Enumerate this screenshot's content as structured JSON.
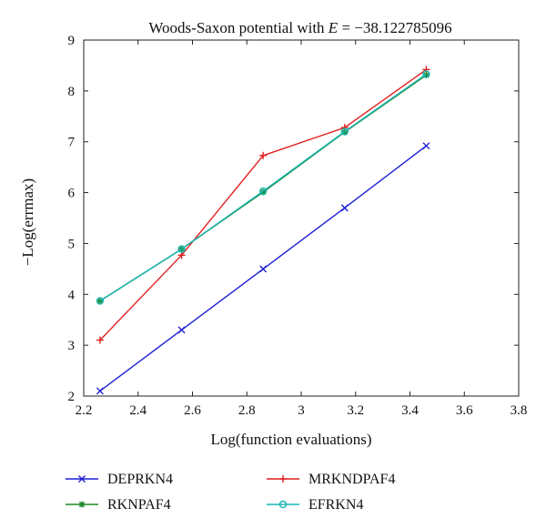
{
  "chart_data": {
    "type": "line",
    "title": "Woods-Saxon potential with E = −38.122785096",
    "title_parts": {
      "prefix": "Woods-Saxon potential with ",
      "var": "E",
      "suffix": " = −38.122785096"
    },
    "xlabel": "Log(function evaluations)",
    "ylabel": "−Log(errmax)",
    "xlim": [
      2.2,
      3.8
    ],
    "ylim": [
      2,
      9
    ],
    "xticks": [
      "2.2",
      "2.4",
      "2.6",
      "2.8",
      "3",
      "3.2",
      "3.4",
      "3.6",
      "3.8"
    ],
    "yticks": [
      "2",
      "3",
      "4",
      "5",
      "6",
      "7",
      "8",
      "9"
    ],
    "grid": false,
    "legend_position": "bottom, outside plot",
    "series": [
      {
        "name": "DEPRKN4",
        "color": "#1f1fd6",
        "marker": "x",
        "x": [
          2.26,
          2.56,
          2.86,
          3.16,
          3.46
        ],
        "y": [
          2.1,
          3.3,
          4.5,
          5.7,
          6.92
        ]
      },
      {
        "name": "MRKNDPAF4",
        "color": "#e0201f",
        "marker": "plus",
        "x": [
          2.26,
          2.56,
          2.86,
          3.16,
          3.46
        ],
        "y": [
          3.1,
          4.77,
          6.73,
          7.28,
          8.42
        ]
      },
      {
        "name": "RKNPAF4",
        "color": "#1c8a2a",
        "marker": "star",
        "x": [
          2.26,
          2.56,
          2.86,
          3.16,
          3.46
        ],
        "y": [
          3.87,
          4.89,
          6.01,
          7.19,
          8.31
        ]
      },
      {
        "name": "EFRKN4",
        "color": "#19b5b5",
        "marker": "circle",
        "x": [
          2.26,
          2.56,
          2.86,
          3.16,
          3.46
        ],
        "y": [
          3.87,
          4.89,
          6.03,
          7.2,
          8.33
        ]
      }
    ]
  }
}
